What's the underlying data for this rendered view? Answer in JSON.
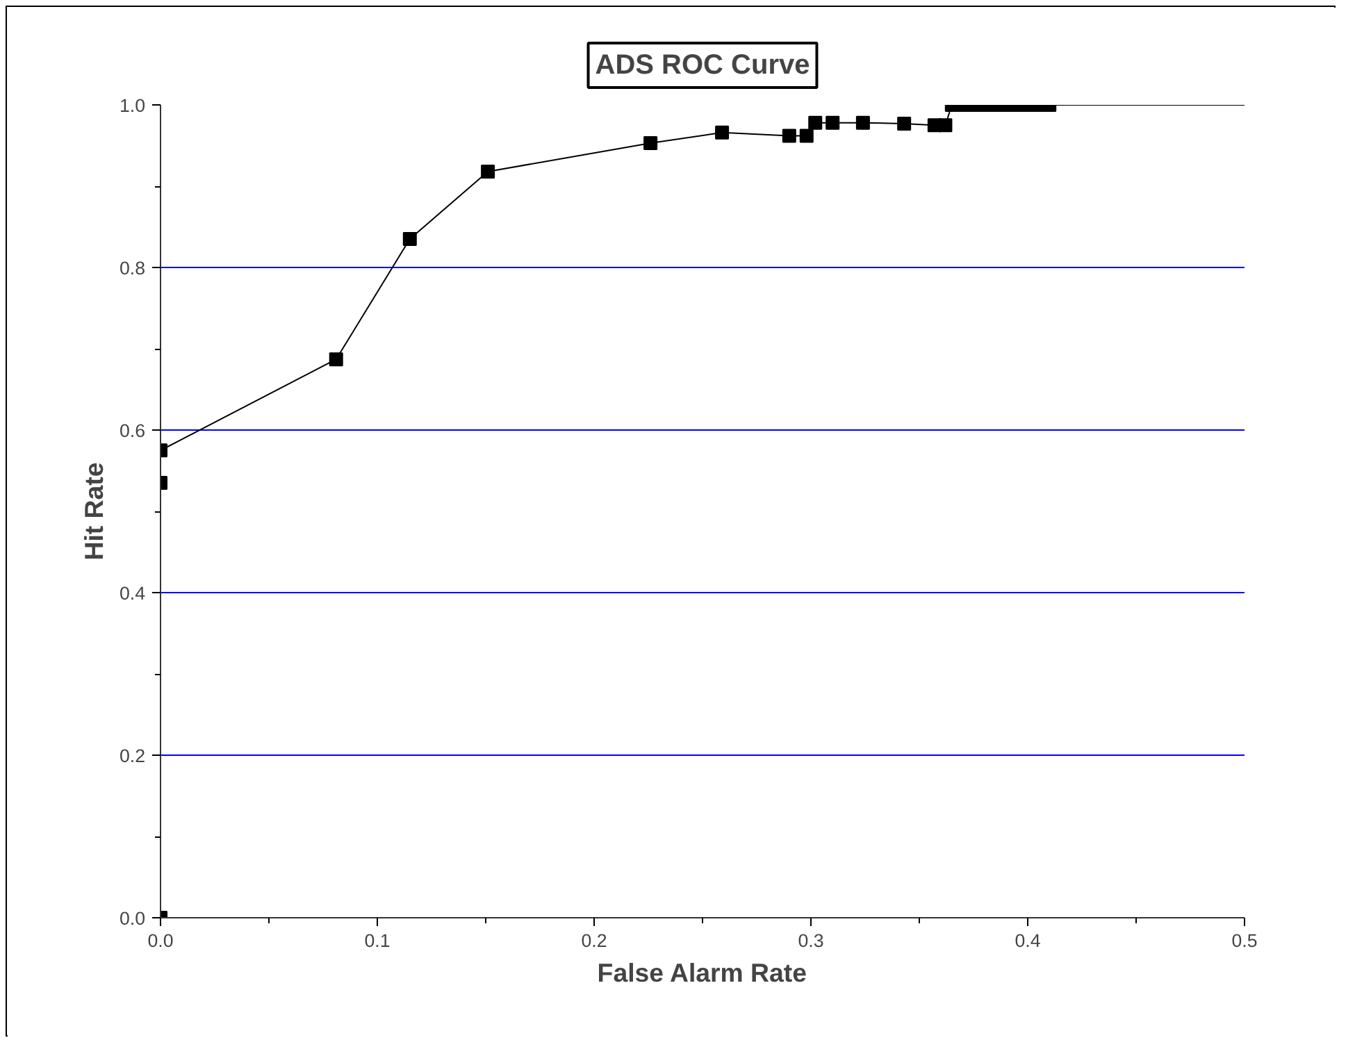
{
  "chart_data": {
    "type": "line",
    "title": "ADS ROC Curve",
    "xlabel": "False Alarm Rate",
    "ylabel": "Hit Rate",
    "xlim": [
      0,
      0.5
    ],
    "xticks": [
      {
        "value": 0,
        "label": "0.0"
      },
      0.1,
      0.2,
      0.3,
      0.4,
      0.5
    ],
    "ylim": [
      0,
      1.0
    ],
    "yticks": [
      {
        "value": 0,
        "label": "0.0"
      },
      0.2,
      0.4,
      0.6,
      0.8,
      {
        "value": 1.0,
        "label": "1.0"
      }
    ],
    "grid": "y",
    "series": [
      {
        "marker": "none",
        "color": "#000000",
        "x": [
          0,
          0,
          0,
          0.081,
          0.115,
          0.151,
          0.226,
          0.259,
          0.29,
          0.298,
          0.302,
          0.31,
          0.324,
          0.343,
          0.357,
          0.362,
          0.365,
          0.37,
          0.375,
          0.38,
          0.385,
          0.39,
          0.396,
          0.4,
          0.405,
          0.41,
          0.5
        ],
        "values": [
          0,
          0.535,
          0.575,
          0.687,
          0.835,
          0.918,
          0.953,
          0.966,
          0.962,
          0.962,
          0.978,
          0.978,
          0.978,
          0.977,
          0.975,
          0.975,
          1.0,
          1.0,
          1.0,
          1.0,
          1.0,
          1.0,
          1.0,
          1.0,
          1.0,
          1.0,
          1.0
        ]
      },
      {
        "type": "scatter",
        "marker": "square",
        "color": "#000000",
        "x": [
          0,
          0,
          0,
          0.081,
          0.115,
          0.151,
          0.226,
          0.259,
          0.29,
          0.298,
          0.302,
          0.31,
          0.324,
          0.343,
          0.357,
          0.362,
          0.365,
          0.37,
          0.375,
          0.38,
          0.385,
          0.39,
          0.396,
          0.4,
          0.405,
          0.41
        ],
        "values": [
          0,
          0.535,
          0.575,
          0.687,
          0.835,
          0.918,
          0.953,
          0.966,
          0.962,
          0.962,
          0.978,
          0.978,
          0.978,
          0.977,
          0.975,
          0.975,
          1.0,
          1.0,
          1.0,
          1.0,
          1.0,
          1.0,
          1.0,
          1.0,
          1.0,
          1.0
        ]
      }
    ]
  }
}
